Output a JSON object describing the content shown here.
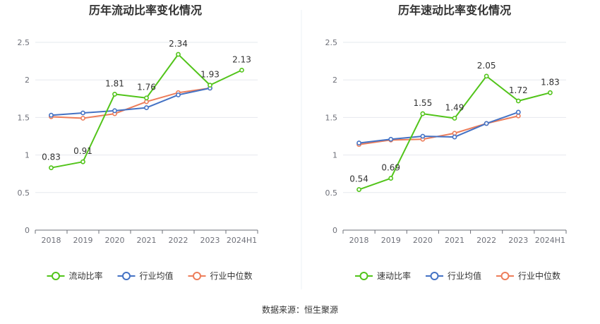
{
  "source_text": "数据来源：恒生聚源",
  "colors": {
    "primary": "#52c41a",
    "avg": "#4472c4",
    "median": "#ed7d5a",
    "grid": "#e6e8ee",
    "axis": "#6e7079"
  },
  "chart_data": [
    {
      "type": "line",
      "title": "历年流动比率变化情况",
      "categories": [
        "2018",
        "2019",
        "2020",
        "2021",
        "2022",
        "2023",
        "2024H1"
      ],
      "ylim": [
        0,
        2.5
      ],
      "yticks": [
        "0",
        "0.5",
        "1",
        "1.5",
        "2",
        "2.5"
      ],
      "grid": true,
      "legend_position": "bottom",
      "series": [
        {
          "name": "流动比率",
          "color_key": "primary",
          "values": [
            0.83,
            0.91,
            1.81,
            1.76,
            2.34,
            1.93,
            2.13
          ],
          "labels": [
            "0.83",
            "0.91",
            "1.81",
            "1.76",
            "2.34",
            "1.93",
            "2.13"
          ]
        },
        {
          "name": "行业均值",
          "color_key": "avg",
          "values": [
            1.53,
            1.56,
            1.59,
            1.63,
            1.8,
            1.89,
            null
          ]
        },
        {
          "name": "行业中位数",
          "color_key": "median",
          "values": [
            1.51,
            1.49,
            1.55,
            1.71,
            1.83,
            1.89,
            null
          ]
        }
      ]
    },
    {
      "type": "line",
      "title": "历年速动比率变化情况",
      "categories": [
        "2018",
        "2019",
        "2020",
        "2021",
        "2022",
        "2023",
        "2024H1"
      ],
      "ylim": [
        0,
        2.5
      ],
      "yticks": [
        "0",
        "0.5",
        "1",
        "1.5",
        "2",
        "2.5"
      ],
      "grid": true,
      "legend_position": "bottom",
      "series": [
        {
          "name": "速动比率",
          "color_key": "primary",
          "values": [
            0.54,
            0.69,
            1.55,
            1.49,
            2.05,
            1.72,
            1.83
          ],
          "labels": [
            "0.54",
            "0.69",
            "1.55",
            "1.49",
            "2.05",
            "1.72",
            "1.83"
          ]
        },
        {
          "name": "行业均值",
          "color_key": "avg",
          "values": [
            1.16,
            1.21,
            1.25,
            1.24,
            1.42,
            1.57,
            null
          ]
        },
        {
          "name": "行业中位数",
          "color_key": "median",
          "values": [
            1.14,
            1.2,
            1.21,
            1.29,
            1.42,
            1.52,
            null
          ]
        }
      ]
    }
  ]
}
